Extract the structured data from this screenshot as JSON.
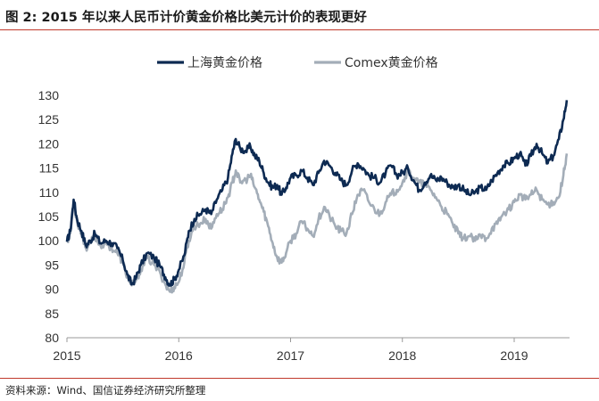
{
  "figure": {
    "title": "图 2:  2015 年以来人民币计价黄金价格比美元计价的表现更好",
    "source": "资料来源：Wind、国信证券经济研究所整理"
  },
  "colors": {
    "shanghai": "#0d2a52",
    "comex": "#a3adb8",
    "rule": "#c0392b",
    "axis": "#999999"
  },
  "chart_data": {
    "type": "line",
    "title": "",
    "xlabel": "",
    "ylabel": "",
    "ylim": [
      80,
      130
    ],
    "yticks": [
      80,
      85,
      90,
      95,
      100,
      105,
      110,
      115,
      120,
      125,
      130
    ],
    "xlim": [
      2015.0,
      2019.5
    ],
    "xticks": [
      "2015",
      "2016",
      "2017",
      "2018",
      "2019"
    ],
    "grid": false,
    "legend": "top-center",
    "series": [
      {
        "name": "上海黄金价格",
        "points": [
          [
            2015.0,
            99.8
          ],
          [
            2015.03,
            102.0
          ],
          [
            2015.06,
            108.5
          ],
          [
            2015.09,
            104.5
          ],
          [
            2015.13,
            102.0
          ],
          [
            2015.17,
            99.0
          ],
          [
            2015.21,
            100.0
          ],
          [
            2015.25,
            101.5
          ],
          [
            2015.3,
            99.5
          ],
          [
            2015.35,
            100.0
          ],
          [
            2015.4,
            99.5
          ],
          [
            2015.45,
            98.5
          ],
          [
            2015.5,
            96.0
          ],
          [
            2015.54,
            93.0
          ],
          [
            2015.58,
            91.0
          ],
          [
            2015.62,
            92.5
          ],
          [
            2015.66,
            95.0
          ],
          [
            2015.72,
            97.5
          ],
          [
            2015.78,
            96.5
          ],
          [
            2015.84,
            94.5
          ],
          [
            2015.88,
            92.5
          ],
          [
            2015.92,
            91.0
          ],
          [
            2015.96,
            92.0
          ],
          [
            2016.0,
            94.0
          ],
          [
            2016.05,
            97.0
          ],
          [
            2016.09,
            102.0
          ],
          [
            2016.14,
            104.5
          ],
          [
            2016.19,
            105.5
          ],
          [
            2016.24,
            106.5
          ],
          [
            2016.29,
            105.5
          ],
          [
            2016.34,
            108.5
          ],
          [
            2016.39,
            110.5
          ],
          [
            2016.44,
            113.0
          ],
          [
            2016.48,
            118.0
          ],
          [
            2016.51,
            121.0
          ],
          [
            2016.55,
            119.0
          ],
          [
            2016.6,
            118.5
          ],
          [
            2016.64,
            119.5
          ],
          [
            2016.68,
            117.5
          ],
          [
            2016.72,
            116.5
          ],
          [
            2016.76,
            114.0
          ],
          [
            2016.8,
            112.0
          ],
          [
            2016.84,
            111.0
          ],
          [
            2016.88,
            111.5
          ],
          [
            2016.92,
            109.5
          ],
          [
            2016.96,
            111.0
          ],
          [
            2017.0,
            113.0
          ],
          [
            2017.05,
            113.5
          ],
          [
            2017.1,
            114.5
          ],
          [
            2017.15,
            113.0
          ],
          [
            2017.2,
            111.5
          ],
          [
            2017.25,
            114.0
          ],
          [
            2017.3,
            116.5
          ],
          [
            2017.35,
            115.5
          ],
          [
            2017.4,
            114.0
          ],
          [
            2017.45,
            112.5
          ],
          [
            2017.5,
            111.5
          ],
          [
            2017.55,
            114.5
          ],
          [
            2017.6,
            116.0
          ],
          [
            2017.65,
            115.0
          ],
          [
            2017.7,
            113.5
          ],
          [
            2017.75,
            113.0
          ],
          [
            2017.8,
            112.0
          ],
          [
            2017.85,
            114.0
          ],
          [
            2017.9,
            115.5
          ],
          [
            2017.95,
            113.5
          ],
          [
            2018.0,
            114.0
          ],
          [
            2018.05,
            115.0
          ],
          [
            2018.1,
            112.5
          ],
          [
            2018.15,
            110.5
          ],
          [
            2018.2,
            112.0
          ],
          [
            2018.25,
            113.5
          ],
          [
            2018.3,
            112.5
          ],
          [
            2018.35,
            113.0
          ],
          [
            2018.4,
            112.0
          ],
          [
            2018.45,
            111.0
          ],
          [
            2018.5,
            111.5
          ],
          [
            2018.55,
            110.5
          ],
          [
            2018.6,
            109.5
          ],
          [
            2018.65,
            110.0
          ],
          [
            2018.7,
            111.0
          ],
          [
            2018.75,
            110.5
          ],
          [
            2018.8,
            112.5
          ],
          [
            2018.85,
            114.0
          ],
          [
            2018.9,
            115.5
          ],
          [
            2018.95,
            116.0
          ],
          [
            2019.0,
            117.0
          ],
          [
            2019.05,
            118.0
          ],
          [
            2019.1,
            115.5
          ],
          [
            2019.15,
            117.5
          ],
          [
            2019.2,
            120.0
          ],
          [
            2019.25,
            118.0
          ],
          [
            2019.3,
            116.0
          ],
          [
            2019.35,
            117.5
          ],
          [
            2019.4,
            121.0
          ],
          [
            2019.44,
            125.0
          ],
          [
            2019.47,
            129.0
          ]
        ]
      },
      {
        "name": "Comex黄金价格",
        "points": [
          [
            2015.0,
            100.0
          ],
          [
            2015.03,
            101.5
          ],
          [
            2015.06,
            108.0
          ],
          [
            2015.09,
            104.0
          ],
          [
            2015.13,
            101.5
          ],
          [
            2015.17,
            98.5
          ],
          [
            2015.21,
            99.5
          ],
          [
            2015.25,
            101.0
          ],
          [
            2015.3,
            99.0
          ],
          [
            2015.35,
            99.5
          ],
          [
            2015.4,
            98.5
          ],
          [
            2015.45,
            97.5
          ],
          [
            2015.5,
            95.5
          ],
          [
            2015.54,
            92.5
          ],
          [
            2015.58,
            90.8
          ],
          [
            2015.62,
            92.0
          ],
          [
            2015.66,
            94.0
          ],
          [
            2015.72,
            96.5
          ],
          [
            2015.78,
            95.0
          ],
          [
            2015.84,
            93.0
          ],
          [
            2015.88,
            91.0
          ],
          [
            2015.92,
            89.5
          ],
          [
            2015.96,
            90.5
          ],
          [
            2016.0,
            91.5
          ],
          [
            2016.05,
            95.5
          ],
          [
            2016.09,
            100.0
          ],
          [
            2016.14,
            103.0
          ],
          [
            2016.19,
            103.5
          ],
          [
            2016.24,
            104.5
          ],
          [
            2016.29,
            102.5
          ],
          [
            2016.34,
            105.5
          ],
          [
            2016.39,
            106.5
          ],
          [
            2016.44,
            109.0
          ],
          [
            2016.48,
            112.0
          ],
          [
            2016.51,
            114.5
          ],
          [
            2016.55,
            112.0
          ],
          [
            2016.6,
            112.5
          ],
          [
            2016.64,
            113.5
          ],
          [
            2016.68,
            111.0
          ],
          [
            2016.72,
            108.5
          ],
          [
            2016.76,
            106.0
          ],
          [
            2016.8,
            103.0
          ],
          [
            2016.84,
            99.5
          ],
          [
            2016.88,
            96.5
          ],
          [
            2016.92,
            95.5
          ],
          [
            2016.96,
            97.5
          ],
          [
            2017.0,
            100.0
          ],
          [
            2017.05,
            101.5
          ],
          [
            2017.1,
            104.0
          ],
          [
            2017.15,
            102.5
          ],
          [
            2017.2,
            101.0
          ],
          [
            2017.25,
            104.5
          ],
          [
            2017.3,
            107.0
          ],
          [
            2017.35,
            105.0
          ],
          [
            2017.4,
            103.0
          ],
          [
            2017.45,
            102.0
          ],
          [
            2017.5,
            101.5
          ],
          [
            2017.55,
            105.5
          ],
          [
            2017.6,
            109.5
          ],
          [
            2017.65,
            110.5
          ],
          [
            2017.7,
            108.0
          ],
          [
            2017.75,
            106.5
          ],
          [
            2017.8,
            105.5
          ],
          [
            2017.85,
            108.0
          ],
          [
            2017.9,
            109.5
          ],
          [
            2017.95,
            110.5
          ],
          [
            2018.0,
            112.0
          ],
          [
            2018.05,
            114.5
          ],
          [
            2018.1,
            113.0
          ],
          [
            2018.15,
            112.0
          ],
          [
            2018.2,
            111.5
          ],
          [
            2018.25,
            110.5
          ],
          [
            2018.3,
            109.0
          ],
          [
            2018.35,
            107.0
          ],
          [
            2018.4,
            105.5
          ],
          [
            2018.45,
            103.5
          ],
          [
            2018.5,
            101.5
          ],
          [
            2018.55,
            100.5
          ],
          [
            2018.6,
            101.0
          ],
          [
            2018.65,
            100.0
          ],
          [
            2018.7,
            101.0
          ],
          [
            2018.75,
            100.5
          ],
          [
            2018.8,
            102.5
          ],
          [
            2018.85,
            103.5
          ],
          [
            2018.9,
            105.5
          ],
          [
            2018.95,
            106.5
          ],
          [
            2019.0,
            108.0
          ],
          [
            2019.05,
            109.5
          ],
          [
            2019.1,
            108.5
          ],
          [
            2019.15,
            109.5
          ],
          [
            2019.2,
            110.5
          ],
          [
            2019.25,
            108.5
          ],
          [
            2019.3,
            107.5
          ],
          [
            2019.35,
            108.0
          ],
          [
            2019.4,
            109.0
          ],
          [
            2019.44,
            113.5
          ],
          [
            2019.47,
            118.0
          ]
        ]
      }
    ]
  }
}
